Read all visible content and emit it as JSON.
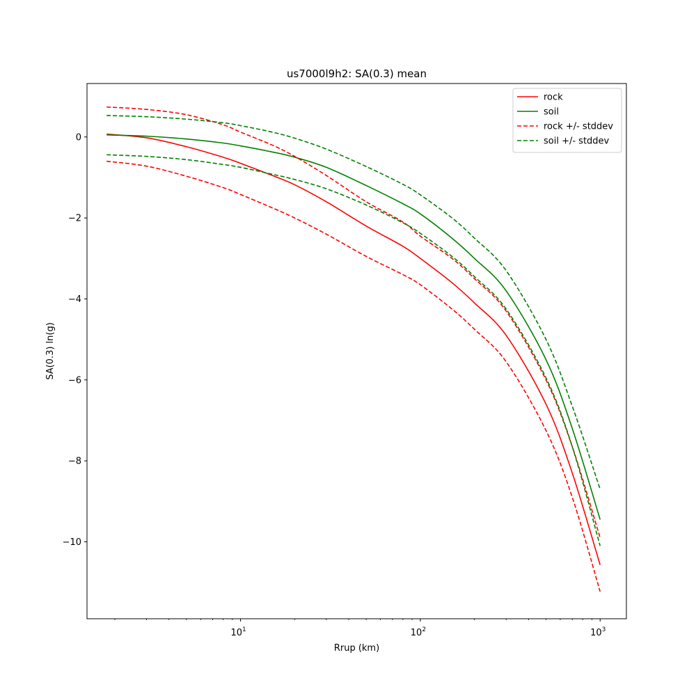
{
  "chart_data": {
    "type": "line",
    "title": "us7000l9h2: SA(0.3) mean",
    "xlabel": "Rrup (km)",
    "ylabel": "SA(0.3) ln(g)",
    "xscale": "log",
    "xlim": [
      1.4,
      1400
    ],
    "ylim": [
      -11.9,
      1.32
    ],
    "xticks": [
      10,
      100,
      1000
    ],
    "xtick_labels": [
      {
        "base": "10",
        "exp": "1"
      },
      {
        "base": "10",
        "exp": "2"
      },
      {
        "base": "10",
        "exp": "3"
      }
    ],
    "yticks": [
      0,
      -2,
      -4,
      -6,
      -8,
      -10
    ],
    "ytick_labels": [
      "0",
      "−2",
      "−4",
      "−6",
      "−8",
      "−10"
    ],
    "grid": false,
    "legend_position": "top-right",
    "x": [
      1.8,
      3,
      5,
      8,
      10,
      15,
      20,
      30,
      50,
      80,
      100,
      150,
      200,
      300,
      500,
      700,
      1000
    ],
    "series": [
      {
        "name": "rock",
        "color": "#ff0000",
        "dash": "solid",
        "values": [
          0.07,
          -0.02,
          -0.24,
          -0.5,
          -0.65,
          -0.95,
          -1.18,
          -1.6,
          -2.2,
          -2.7,
          -3.0,
          -3.6,
          -4.1,
          -4.9,
          -6.6,
          -8.3,
          -10.57
        ]
      },
      {
        "name": "soil",
        "color": "#008000",
        "dash": "solid",
        "values": [
          0.05,
          0.02,
          -0.05,
          -0.15,
          -0.22,
          -0.37,
          -0.5,
          -0.75,
          -1.2,
          -1.65,
          -1.9,
          -2.5,
          -3.0,
          -3.8,
          -5.5,
          -7.2,
          -9.45
        ]
      },
      {
        "name": "rock +/- stddev",
        "color": "#ff0000",
        "dash": "dashed",
        "values": [
          0.74,
          0.68,
          0.55,
          0.3,
          0.12,
          -0.2,
          -0.48,
          -0.95,
          -1.6,
          -2.1,
          -2.45,
          -3.0,
          -3.5,
          -4.3,
          -6.0,
          -7.65,
          -9.9
        ]
      },
      {
        "name": "",
        "color": "#ff0000",
        "dash": "dashed",
        "values": [
          -0.6,
          -0.72,
          -0.97,
          -1.25,
          -1.42,
          -1.75,
          -2.0,
          -2.4,
          -2.95,
          -3.4,
          -3.65,
          -4.25,
          -4.75,
          -5.55,
          -7.25,
          -8.9,
          -11.23
        ]
      },
      {
        "name": "soil +/- stddev",
        "color": "#008000",
        "dash": "dashed",
        "values": [
          0.53,
          0.5,
          0.44,
          0.35,
          0.28,
          0.12,
          -0.03,
          -0.3,
          -0.73,
          -1.17,
          -1.43,
          -2.0,
          -2.5,
          -3.3,
          -5.0,
          -6.65,
          -8.7
        ]
      },
      {
        "name": "",
        "color": "#008000",
        "dash": "dashed",
        "values": [
          -0.44,
          -0.48,
          -0.56,
          -0.68,
          -0.75,
          -0.92,
          -1.05,
          -1.28,
          -1.68,
          -2.12,
          -2.38,
          -2.95,
          -3.45,
          -4.25,
          -5.95,
          -7.65,
          -10.1
        ]
      }
    ]
  }
}
